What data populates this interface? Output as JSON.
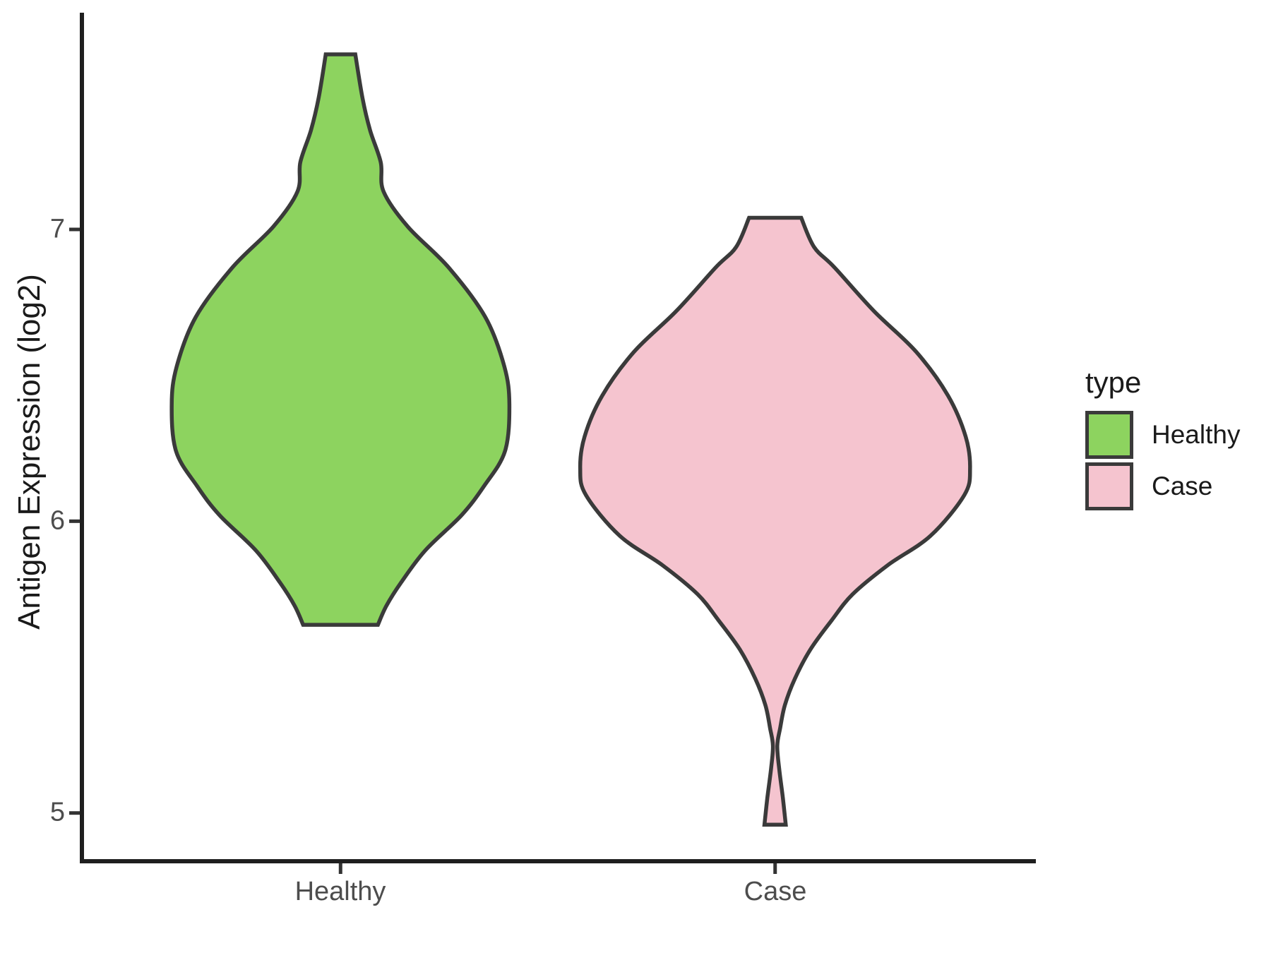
{
  "chart_data": {
    "type": "violin",
    "title": "",
    "xlabel": "",
    "ylabel": "Antigen Expression (log2)",
    "x_categories": [
      "Healthy",
      "Case"
    ],
    "y_ticks": [
      "5",
      "6",
      "7"
    ],
    "y_tick_values": [
      5,
      6,
      7
    ],
    "ylim_shown": [
      4.83,
      7.75
    ],
    "grid": "off",
    "theme": "classic",
    "legend": {
      "title": "type",
      "position": "right",
      "entries": [
        {
          "label": "Healthy",
          "color": "#8DD35F"
        },
        {
          "label": "Case",
          "color": "#F5C4CF"
        }
      ]
    },
    "series": [
      {
        "name": "Healthy",
        "category": "Healthy",
        "fill": "#8DD35F",
        "value_range": [
          5.645,
          7.6
        ],
        "profile": [
          [
            7.6,
            0.068
          ],
          [
            7.45,
            0.101
          ],
          [
            7.34,
            0.136
          ],
          [
            7.23,
            0.185
          ],
          [
            7.13,
            0.198
          ],
          [
            7.01,
            0.309
          ],
          [
            6.87,
            0.497
          ],
          [
            6.7,
            0.666
          ],
          [
            6.53,
            0.754
          ],
          [
            6.4,
            0.777
          ],
          [
            6.24,
            0.757
          ],
          [
            6.12,
            0.66
          ],
          [
            6.02,
            0.556
          ],
          [
            5.9,
            0.39
          ],
          [
            5.79,
            0.279
          ],
          [
            5.71,
            0.211
          ],
          [
            5.645,
            0.172
          ]
        ]
      },
      {
        "name": "Case",
        "category": "Case",
        "fill": "#F5C4CF",
        "value_range": [
          4.96,
          7.04
        ],
        "profile": [
          [
            7.04,
            0.12
          ],
          [
            6.94,
            0.179
          ],
          [
            6.87,
            0.273
          ],
          [
            6.72,
            0.455
          ],
          [
            6.58,
            0.65
          ],
          [
            6.43,
            0.796
          ],
          [
            6.29,
            0.877
          ],
          [
            6.18,
            0.897
          ],
          [
            6.09,
            0.871
          ],
          [
            5.95,
            0.715
          ],
          [
            5.85,
            0.52
          ],
          [
            5.75,
            0.357
          ],
          [
            5.66,
            0.26
          ],
          [
            5.56,
            0.162
          ],
          [
            5.46,
            0.091
          ],
          [
            5.37,
            0.045
          ],
          [
            5.29,
            0.023
          ],
          [
            5.23,
            0.01
          ],
          [
            5.15,
            0.019
          ],
          [
            5.05,
            0.036
          ],
          [
            4.96,
            0.049
          ]
        ]
      }
    ],
    "colors": {
      "background": "#ffffff",
      "axis_line": "#1f1f1f",
      "tick_mark": "#333333",
      "tick_text": "#4d4d4d",
      "title_text": "#1a1a1a",
      "violin_outline": "#3a3a3a"
    }
  }
}
